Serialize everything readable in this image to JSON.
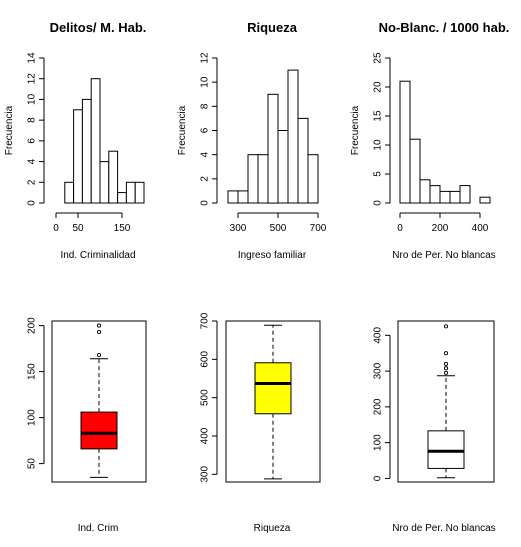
{
  "chart_data": [
    {
      "type": "bar",
      "subtype": "histogram",
      "title": "Delitos/ M. Hab.",
      "xlabel": "Ind. Criminalidad",
      "ylabel": "Frecuencia",
      "bin_width": 20,
      "bins": [
        [
          20,
          40
        ],
        [
          40,
          60
        ],
        [
          60,
          80
        ],
        [
          80,
          100
        ],
        [
          100,
          120
        ],
        [
          120,
          140
        ],
        [
          140,
          160
        ],
        [
          160,
          180
        ],
        [
          180,
          200
        ]
      ],
      "values": [
        2,
        9,
        10,
        12,
        4,
        5,
        1,
        2,
        2
      ],
      "xlim": [
        0,
        200
      ],
      "ylim": [
        0,
        14
      ],
      "xticks": [
        0,
        50,
        150
      ],
      "yticks": [
        0,
        2,
        4,
        6,
        8,
        10,
        12,
        14
      ],
      "bar_color": "#ffffff"
    },
    {
      "type": "bar",
      "subtype": "histogram",
      "title": "Riqueza",
      "xlabel": "Ingreso familiar",
      "ylabel": "Frecuencia",
      "bin_width": 50,
      "bins": [
        [
          250,
          300
        ],
        [
          300,
          350
        ],
        [
          350,
          400
        ],
        [
          400,
          450
        ],
        [
          450,
          500
        ],
        [
          500,
          550
        ],
        [
          550,
          600
        ],
        [
          600,
          650
        ],
        [
          650,
          700
        ]
      ],
      "values": [
        1,
        1,
        4,
        4,
        9,
        6,
        11,
        7,
        4
      ],
      "xlim": [
        250,
        700
      ],
      "ylim": [
        0,
        12
      ],
      "xticks": [
        300,
        500,
        700
      ],
      "yticks": [
        0,
        2,
        4,
        6,
        8,
        10,
        12
      ],
      "bar_color": "#ffffff"
    },
    {
      "type": "bar",
      "subtype": "histogram",
      "title": "No-Blanc. / 1000 hab.",
      "xlabel": "Nro de Per. No blancas",
      "ylabel": "Frecuencia",
      "bin_width": 50,
      "bins": [
        [
          0,
          50
        ],
        [
          50,
          100
        ],
        [
          100,
          150
        ],
        [
          150,
          200
        ],
        [
          200,
          250
        ],
        [
          250,
          300
        ],
        [
          300,
          350
        ],
        [
          350,
          400
        ],
        [
          400,
          450
        ]
      ],
      "values": [
        21,
        11,
        4,
        3,
        2,
        2,
        3,
        0,
        1
      ],
      "xlim": [
        0,
        450
      ],
      "ylim": [
        0,
        25
      ],
      "xticks": [
        0,
        200,
        400
      ],
      "yticks": [
        0,
        5,
        10,
        15,
        20,
        25
      ],
      "bar_color": "#ffffff"
    },
    {
      "type": "box",
      "xlabel": "Ind. Crim",
      "ylim": [
        30,
        205
      ],
      "yticks": [
        50,
        100,
        150,
        200
      ],
      "whisker_low": 35,
      "q1": 66,
      "median": 83,
      "q3": 106,
      "whisker_high": 164,
      "outliers": [
        168,
        193,
        200
      ],
      "fill": "#ff0000"
    },
    {
      "type": "box",
      "xlabel": "Riqueza",
      "ylim": [
        280,
        700
      ],
      "yticks": [
        300,
        400,
        500,
        600,
        700
      ],
      "whisker_low": 288,
      "q1": 458,
      "median": 537,
      "q3": 591,
      "whisker_high": 689,
      "outliers": [],
      "fill": "#ffff00"
    },
    {
      "type": "box",
      "xlabel": "Nro de Per. No blancas",
      "ylim": [
        -10,
        440
      ],
      "yticks": [
        0,
        100,
        200,
        300,
        400
      ],
      "whisker_low": 2,
      "q1": 28,
      "median": 76,
      "q3": 133,
      "whisker_high": 287,
      "outliers": [
        295,
        308,
        320,
        350,
        425
      ],
      "fill": "#ffffff"
    }
  ]
}
